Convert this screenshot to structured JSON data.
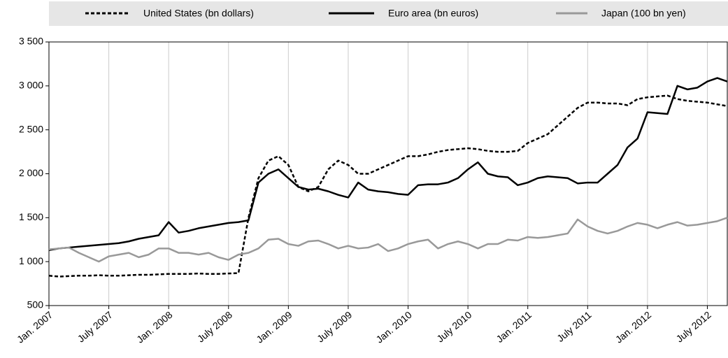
{
  "chart_data": {
    "type": "line",
    "x": [
      "2007-01",
      "2007-02",
      "2007-03",
      "2007-04",
      "2007-05",
      "2007-06",
      "2007-07",
      "2007-08",
      "2007-09",
      "2007-10",
      "2007-11",
      "2007-12",
      "2008-01",
      "2008-02",
      "2008-03",
      "2008-04",
      "2008-05",
      "2008-06",
      "2008-07",
      "2008-08",
      "2008-09",
      "2008-10",
      "2008-11",
      "2008-12",
      "2009-01",
      "2009-02",
      "2009-03",
      "2009-04",
      "2009-05",
      "2009-06",
      "2009-07",
      "2009-08",
      "2009-09",
      "2009-10",
      "2009-11",
      "2009-12",
      "2010-01",
      "2010-02",
      "2010-03",
      "2010-04",
      "2010-05",
      "2010-06",
      "2010-07",
      "2010-08",
      "2010-09",
      "2010-10",
      "2010-11",
      "2010-12",
      "2011-01",
      "2011-02",
      "2011-03",
      "2011-04",
      "2011-05",
      "2011-06",
      "2011-07",
      "2011-08",
      "2011-09",
      "2011-10",
      "2011-11",
      "2011-12",
      "2012-01",
      "2012-02",
      "2012-03",
      "2012-04",
      "2012-05",
      "2012-06",
      "2012-07",
      "2012-08",
      "2012-09"
    ],
    "series": [
      {
        "name": "United States (bn dollars)",
        "color": "#000000",
        "style": "dashed",
        "values": [
          840,
          830,
          835,
          840,
          840,
          845,
          840,
          840,
          845,
          850,
          850,
          855,
          860,
          860,
          860,
          865,
          860,
          860,
          865,
          870,
          1500,
          1950,
          2150,
          2200,
          2100,
          1850,
          1800,
          1850,
          2050,
          2150,
          2100,
          2000,
          2000,
          2050,
          2100,
          2150,
          2200,
          2200,
          2220,
          2250,
          2270,
          2280,
          2290,
          2280,
          2260,
          2250,
          2250,
          2260,
          2350,
          2400,
          2450,
          2550,
          2650,
          2750,
          2810,
          2810,
          2800,
          2800,
          2780,
          2850,
          2870,
          2880,
          2890,
          2850,
          2830,
          2820,
          2810,
          2790,
          2770
        ]
      },
      {
        "name": "Euro area (bn euros)",
        "color": "#000000",
        "style": "solid",
        "values": [
          1130,
          1150,
          1160,
          1170,
          1180,
          1190,
          1200,
          1210,
          1230,
          1260,
          1280,
          1300,
          1450,
          1330,
          1350,
          1380,
          1400,
          1420,
          1440,
          1450,
          1470,
          1900,
          2000,
          2050,
          1950,
          1850,
          1820,
          1830,
          1800,
          1760,
          1730,
          1900,
          1820,
          1800,
          1790,
          1770,
          1760,
          1870,
          1880,
          1880,
          1900,
          1950,
          2050,
          2130,
          2000,
          1970,
          1960,
          1870,
          1900,
          1950,
          1970,
          1960,
          1950,
          1890,
          1900,
          1900,
          2000,
          2100,
          2300,
          2400,
          2700,
          2690,
          2680,
          3000,
          2960,
          2980,
          3050,
          3090,
          3050
        ]
      },
      {
        "name": "Japan (100 bn yen)",
        "color": "#999999",
        "style": "solid",
        "values": [
          1140,
          1150,
          1160,
          1100,
          1050,
          1000,
          1060,
          1080,
          1100,
          1050,
          1080,
          1150,
          1150,
          1100,
          1100,
          1080,
          1100,
          1050,
          1020,
          1080,
          1100,
          1150,
          1250,
          1260,
          1200,
          1180,
          1230,
          1240,
          1200,
          1150,
          1180,
          1150,
          1160,
          1200,
          1120,
          1150,
          1200,
          1230,
          1250,
          1150,
          1200,
          1230,
          1200,
          1150,
          1200,
          1200,
          1250,
          1240,
          1280,
          1270,
          1280,
          1300,
          1320,
          1480,
          1400,
          1350,
          1320,
          1350,
          1400,
          1440,
          1420,
          1380,
          1420,
          1450,
          1410,
          1420,
          1440,
          1460,
          1500
        ]
      }
    ],
    "xlim": [
      "2007-01",
      "2012-09"
    ],
    "xticks": [
      {
        "value": "2007-01",
        "label": "Jan. 2007"
      },
      {
        "value": "2007-07",
        "label": "July 2007"
      },
      {
        "value": "2008-01",
        "label": "Jan. 2008"
      },
      {
        "value": "2008-07",
        "label": "July 2008"
      },
      {
        "value": "2009-01",
        "label": "Jan. 2009"
      },
      {
        "value": "2009-07",
        "label": "July 2009"
      },
      {
        "value": "2010-01",
        "label": "Jan. 2010"
      },
      {
        "value": "2010-07",
        "label": "July 2010"
      },
      {
        "value": "2011-01",
        "label": "Jan. 2011"
      },
      {
        "value": "2011-07",
        "label": "July 2011"
      },
      {
        "value": "2012-01",
        "label": "Jan. 2012"
      },
      {
        "value": "2012-07",
        "label": "July 2012"
      }
    ],
    "ylim": [
      500,
      3500
    ],
    "yticks": [
      500,
      {
        "value": 1000,
        "label": "1 000"
      },
      {
        "value": 1500,
        "label": "1 500"
      },
      {
        "value": 2000,
        "label": "2 000"
      },
      {
        "value": 2500,
        "label": "2 500"
      },
      {
        "value": 3000,
        "label": "3 000"
      },
      {
        "value": 3500,
        "label": "3 500"
      }
    ],
    "grid": true
  }
}
